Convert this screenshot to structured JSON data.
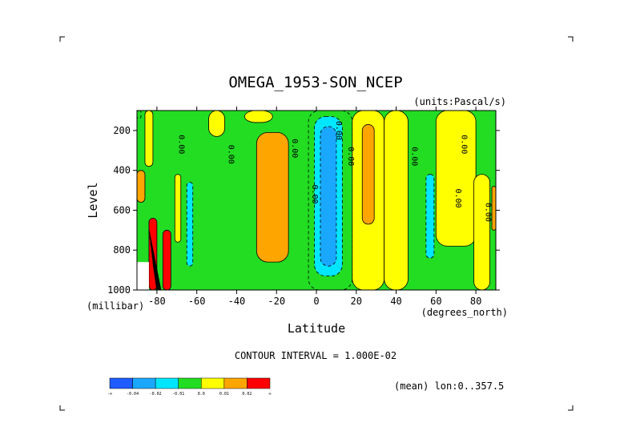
{
  "chart_data": {
    "type": "heatmap",
    "title": "OMEGA_1953-SON_NCEP",
    "units": "(units:Pascal/s)",
    "xlabel": "Latitude",
    "x_units": "(degrees_north)",
    "ylabel": "Level",
    "y_units": "(millibar)",
    "xlim": [
      -90,
      90
    ],
    "ylim": [
      1000,
      100
    ],
    "x_ticks": [
      "-80",
      "-60",
      "-40",
      "-20",
      "0",
      "20",
      "40",
      "60",
      "80"
    ],
    "y_ticks": [
      "200",
      "400",
      "600",
      "800",
      "1000"
    ],
    "contour_interval": "CONTOUR INTERVAL = 1.000E-02",
    "mean_note": "(mean) lon:0..357.5",
    "contour_labels": [
      "0.00",
      "0.00",
      "0.00",
      "0.00",
      "0.00",
      "0.00",
      "0.00",
      "0.00",
      "0.00",
      "0.00"
    ],
    "colorbar": {
      "labels": [
        "-∞",
        "-0.04",
        "-0.02",
        "-0.01",
        "0.0",
        "0.01",
        "0.02",
        "∞"
      ],
      "colors": [
        "#1e5cff",
        "#1aa8ff",
        "#00e6ff",
        "#22dd22",
        "#ffff00",
        "#ffa500",
        "#ff0000"
      ]
    },
    "bands": [
      {
        "lat": [
          -90,
          -88
        ],
        "level": [
          100,
          140
        ],
        "class": "negative",
        "value": -0.005
      },
      {
        "lat": [
          -86,
          -82
        ],
        "level": [
          100,
          380
        ],
        "class": "positive",
        "value": 0.005
      },
      {
        "lat": [
          -90,
          -86
        ],
        "level": [
          400,
          560
        ],
        "class": "positive",
        "value": 0.012
      },
      {
        "lat": [
          -84,
          -80
        ],
        "level": [
          640,
          1000
        ],
        "class": "positive",
        "value": 0.025
      },
      {
        "lat": [
          -77,
          -73
        ],
        "level": [
          700,
          1000
        ],
        "class": "positive",
        "value": 0.025
      },
      {
        "lat": [
          -71,
          -68
        ],
        "level": [
          420,
          760
        ],
        "class": "positive",
        "value": 0.005
      },
      {
        "lat": [
          -65,
          -62
        ],
        "level": [
          460,
          880
        ],
        "class": "negative",
        "value": -0.015
      },
      {
        "lat": [
          -54,
          -46
        ],
        "level": [
          100,
          230
        ],
        "class": "positive",
        "value": 0.005
      },
      {
        "lat": [
          -36,
          -22
        ],
        "level": [
          100,
          160
        ],
        "class": "positive",
        "value": 0.005
      },
      {
        "lat": [
          -30,
          -14
        ],
        "level": [
          210,
          860
        ],
        "class": "positive",
        "value": 0.015
      },
      {
        "lat": [
          -4,
          18
        ],
        "level": [
          100,
          1000
        ],
        "class": "negative",
        "value": -0.005
      },
      {
        "lat": [
          -1,
          13
        ],
        "level": [
          130,
          930
        ],
        "class": "negative",
        "value": -0.015
      },
      {
        "lat": [
          2,
          10
        ],
        "level": [
          180,
          880
        ],
        "class": "negative",
        "value": -0.03
      },
      {
        "lat": [
          18,
          34
        ],
        "level": [
          100,
          1000
        ],
        "class": "positive",
        "value": 0.005
      },
      {
        "lat": [
          23,
          29
        ],
        "level": [
          170,
          670
        ],
        "class": "positive",
        "value": 0.015
      },
      {
        "lat": [
          34,
          46
        ],
        "level": [
          100,
          1000
        ],
        "class": "positive",
        "value": 0.005
      },
      {
        "lat": [
          60,
          80
        ],
        "level": [
          100,
          780
        ],
        "class": "positive",
        "value": 0.005
      },
      {
        "lat": [
          55,
          59
        ],
        "level": [
          420,
          840
        ],
        "class": "negative",
        "value": -0.015
      },
      {
        "lat": [
          79,
          87
        ],
        "level": [
          420,
          1000
        ],
        "class": "positive",
        "value": 0.005
      },
      {
        "lat": [
          88,
          90
        ],
        "level": [
          480,
          700
        ],
        "class": "positive",
        "value": 0.015
      }
    ]
  }
}
